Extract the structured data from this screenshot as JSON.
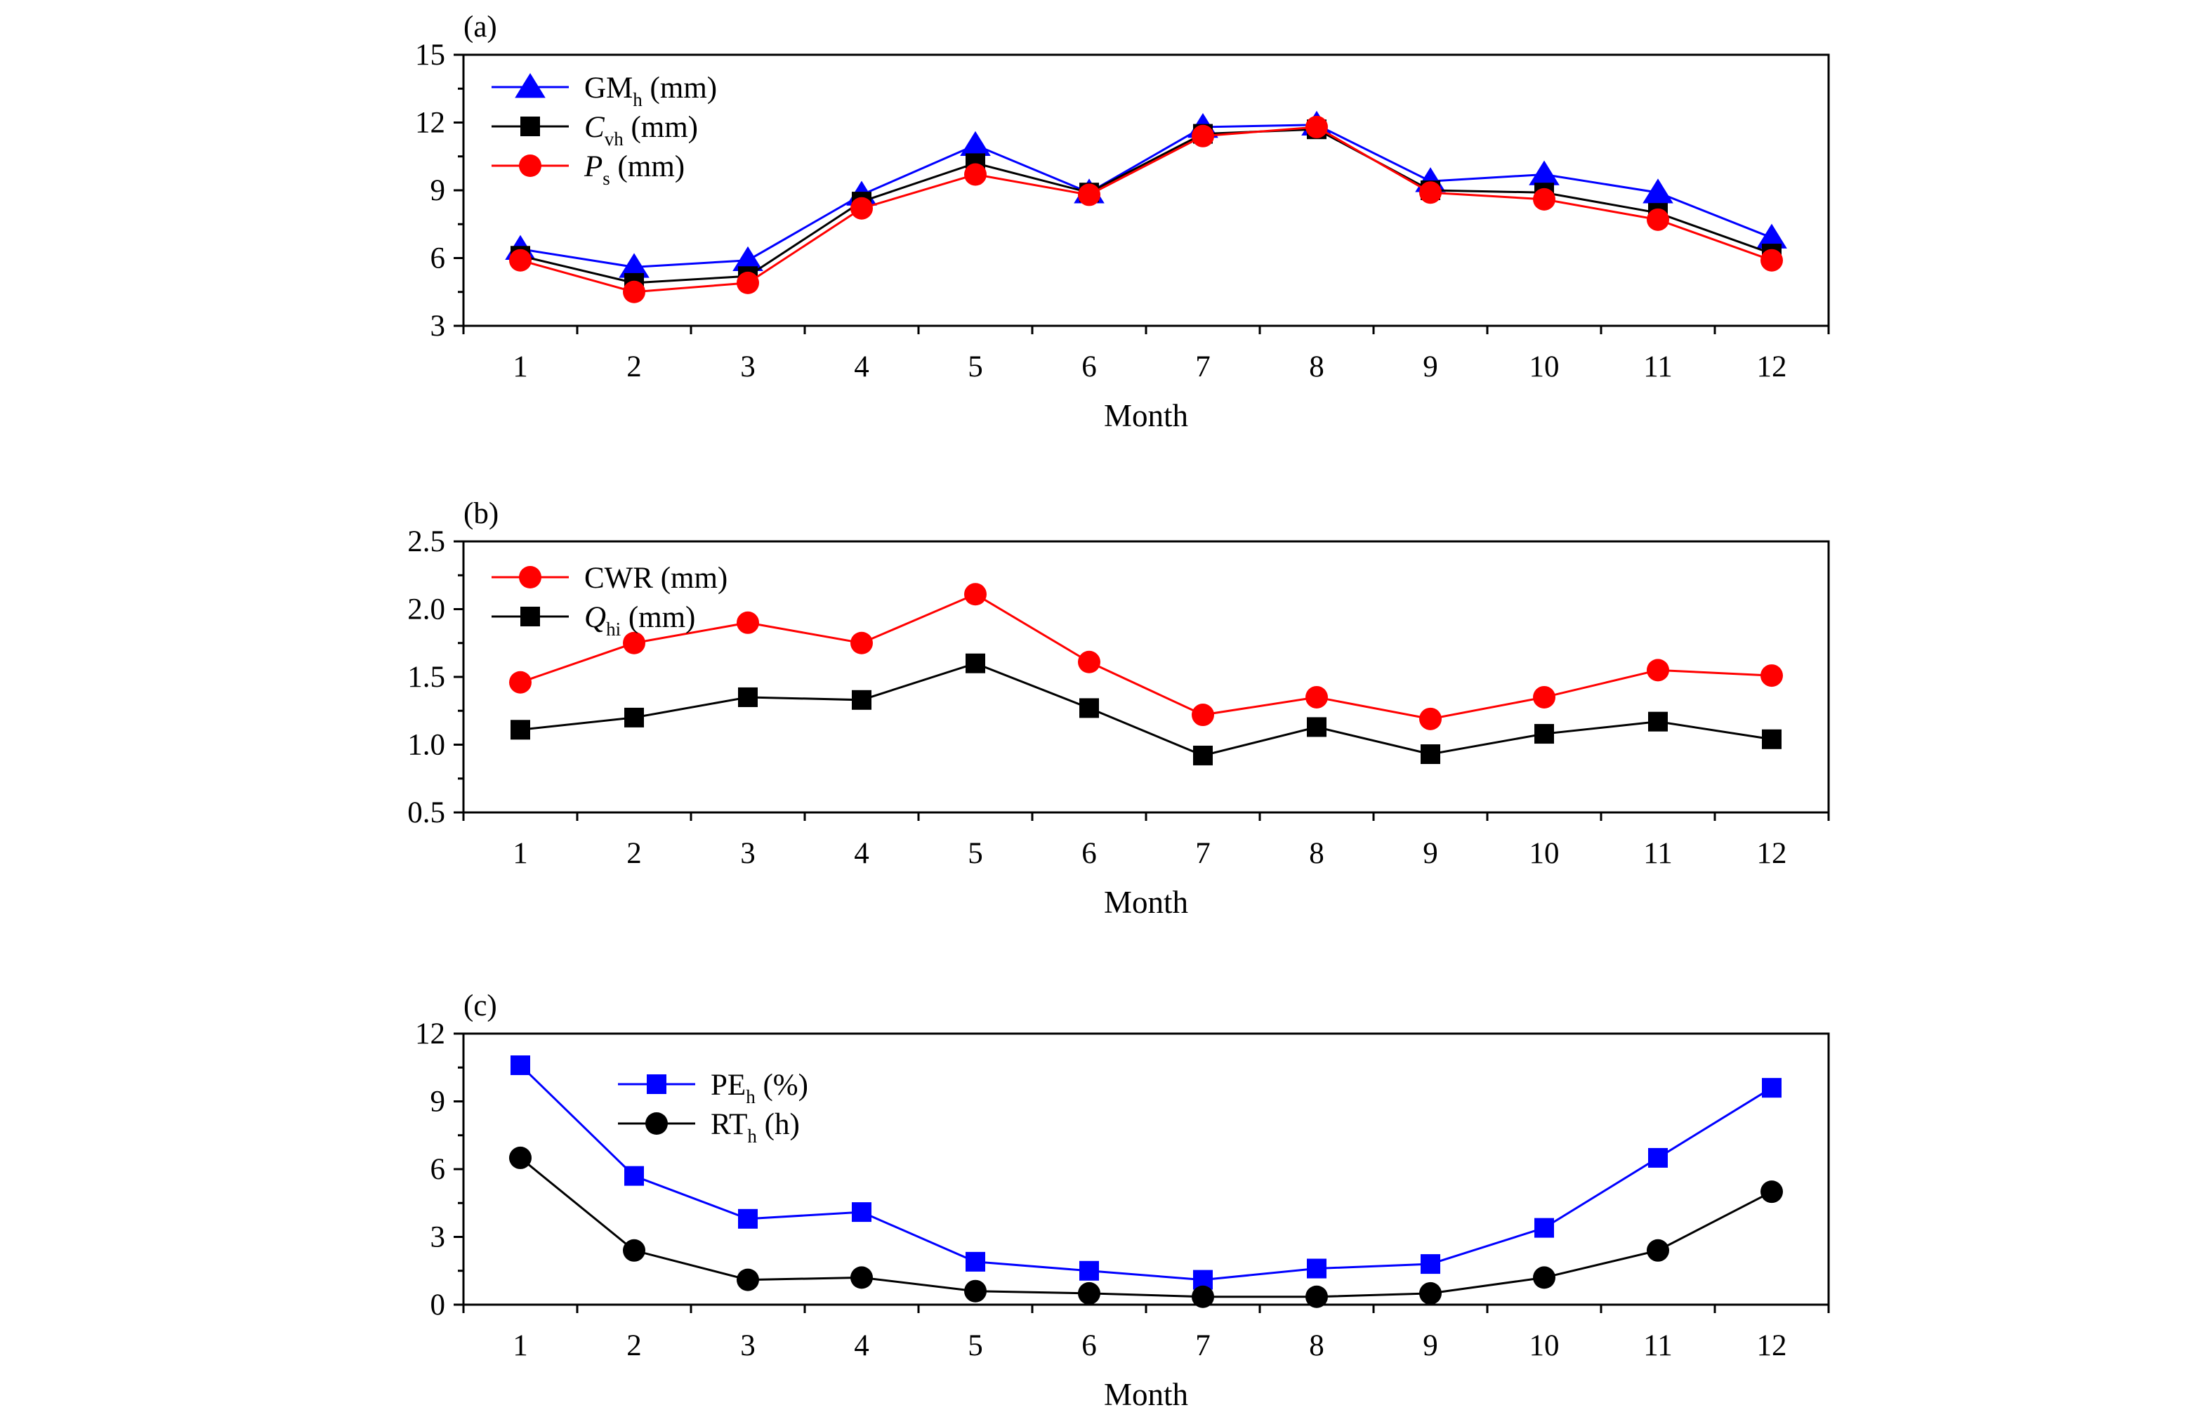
{
  "chart_data": [
    {
      "type": "line",
      "panel_label": "(a)",
      "xlabel": "Month",
      "ylabel": "",
      "categories": [
        "1",
        "2",
        "3",
        "4",
        "5",
        "6",
        "7",
        "8",
        "9",
        "10",
        "11",
        "12"
      ],
      "ylim": [
        3,
        15
      ],
      "yticks": [
        "3",
        "6",
        "9",
        "12",
        "15"
      ],
      "grid": false,
      "legend_position": "top-left",
      "series": [
        {
          "name": "GMh (mm)",
          "legend_main": "GM",
          "legend_sub": "h",
          "legend_unit": " (mm)",
          "italic": false,
          "color": "#0000ff",
          "marker": "triangle",
          "values": [
            6.4,
            5.6,
            5.9,
            8.8,
            11.0,
            8.9,
            11.8,
            11.9,
            9.4,
            9.7,
            8.9,
            6.9
          ]
        },
        {
          "name": "Cvh (mm)",
          "legend_main": "C",
          "legend_sub": "vh",
          "legend_unit": " (mm)",
          "italic": true,
          "color": "#000000",
          "marker": "square",
          "values": [
            6.1,
            4.9,
            5.2,
            8.5,
            10.2,
            8.9,
            11.5,
            11.7,
            9.0,
            8.9,
            8.0,
            6.2
          ]
        },
        {
          "name": "Ps (mm)",
          "legend_main": "P",
          "legend_sub": "s",
          "legend_unit": " (mm)",
          "italic": true,
          "color": "#ff0000",
          "marker": "circle",
          "values": [
            5.9,
            4.5,
            4.9,
            8.2,
            9.7,
            8.8,
            11.4,
            11.8,
            8.9,
            8.6,
            7.7,
            5.9
          ]
        }
      ]
    },
    {
      "type": "line",
      "panel_label": "(b)",
      "xlabel": "Month",
      "ylabel": "",
      "categories": [
        "1",
        "2",
        "3",
        "4",
        "5",
        "6",
        "7",
        "8",
        "9",
        "10",
        "11",
        "12"
      ],
      "ylim": [
        0.5,
        2.5
      ],
      "yticks": [
        "0.5",
        "1.0",
        "1.5",
        "2.0",
        "2.5"
      ],
      "grid": false,
      "legend_position": "top-left",
      "series": [
        {
          "name": "CWR (mm)",
          "legend_main": "CWR",
          "legend_sub": "",
          "legend_unit": " (mm)",
          "italic": false,
          "color": "#ff0000",
          "marker": "circle",
          "values": [
            1.46,
            1.75,
            1.9,
            1.75,
            2.11,
            1.61,
            1.22,
            1.35,
            1.19,
            1.35,
            1.55,
            1.51
          ]
        },
        {
          "name": "Qhi (mm)",
          "legend_main": "Q",
          "legend_sub": "hi",
          "legend_unit": " (mm)",
          "italic": true,
          "color": "#000000",
          "marker": "square",
          "values": [
            1.11,
            1.2,
            1.35,
            1.33,
            1.6,
            1.27,
            0.92,
            1.13,
            0.93,
            1.08,
            1.17,
            1.04
          ]
        }
      ]
    },
    {
      "type": "line",
      "panel_label": "(c)",
      "xlabel": "Month",
      "ylabel": "",
      "categories": [
        "1",
        "2",
        "3",
        "4",
        "5",
        "6",
        "7",
        "8",
        "9",
        "10",
        "11",
        "12"
      ],
      "ylim": [
        0,
        12
      ],
      "yticks": [
        "0",
        "3",
        "6",
        "9",
        "12"
      ],
      "grid": false,
      "legend_position": "top-left",
      "series": [
        {
          "name": "PEh (%)",
          "legend_main": "PE",
          "legend_sub": "h",
          "legend_unit": " (%)",
          "italic": false,
          "color": "#0000ff",
          "marker": "square",
          "values": [
            10.6,
            5.7,
            3.8,
            4.1,
            1.9,
            1.5,
            1.1,
            1.6,
            1.8,
            3.4,
            6.5,
            9.6
          ]
        },
        {
          "name": "RTh (h)",
          "legend_main": "RT",
          "legend_sub": "h",
          "legend_unit": " (h)",
          "italic": false,
          "color": "#000000",
          "marker": "circle",
          "values": [
            6.5,
            2.4,
            1.1,
            1.2,
            0.6,
            0.5,
            0.35,
            0.35,
            0.5,
            1.2,
            2.4,
            5.0
          ]
        }
      ]
    }
  ]
}
